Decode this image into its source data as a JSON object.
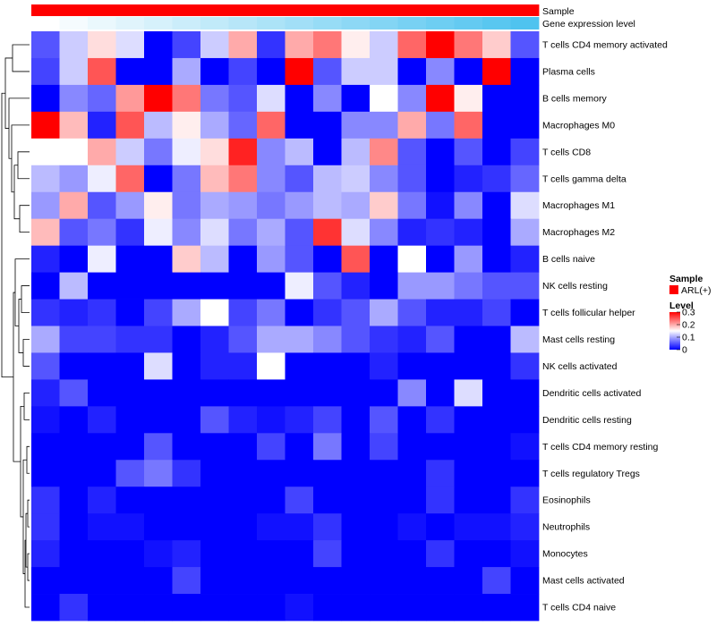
{
  "chart_data": {
    "type": "heatmap",
    "column_annotations": [
      {
        "name": "Sample",
        "kind": "categorical",
        "color": "#ff0000"
      },
      {
        "name": "Gene expression level",
        "kind": "continuous",
        "low_color": "#ffffff",
        "high_color": "#4fc3ef"
      }
    ],
    "rows": [
      "T cells CD4 memory activated",
      "Plasma cells",
      "B cells memory",
      "Macrophages M0",
      "T cells CD8",
      "T cells gamma delta",
      "Macrophages M1",
      "Macrophages M2",
      "B cells naive",
      "NK cells resting",
      "T cells follicular helper",
      "Mast cells resting",
      "NK cells activated",
      "Dendritic cells activated",
      "Dendritic cells resting",
      "T cells CD4 memory resting",
      "T cells regulatory  Tregs",
      "Eosinophils",
      "Neutrophils",
      "Monocytes",
      "Mast cells activated",
      "T cells CD4 naive"
    ],
    "n_columns": 18,
    "values": [
      [
        0.05,
        0.12,
        0.17,
        0.13,
        0.0,
        0.04,
        0.12,
        0.2,
        0.03,
        0.2,
        0.23,
        0.16,
        0.12,
        0.24,
        0.3,
        0.23,
        0.18,
        0.05
      ],
      [
        0.04,
        0.12,
        0.25,
        0.0,
        0.0,
        0.1,
        0.0,
        0.04,
        0.0,
        0.3,
        0.05,
        0.12,
        0.12,
        0.0,
        0.08,
        0.0,
        0.3,
        0.0
      ],
      [
        0.0,
        0.08,
        0.06,
        0.21,
        0.3,
        0.23,
        0.07,
        0.05,
        0.13,
        0.0,
        0.08,
        0.0,
        0.15,
        0.08,
        0.3,
        0.16,
        0.0,
        0.0
      ],
      [
        0.3,
        0.19,
        0.02,
        0.25,
        0.11,
        0.16,
        0.1,
        0.06,
        0.24,
        0.0,
        0.0,
        0.08,
        0.08,
        0.2,
        0.07,
        0.24,
        0.0,
        0.0
      ],
      [
        0.15,
        0.15,
        0.2,
        0.12,
        0.07,
        0.14,
        0.17,
        0.28,
        0.08,
        0.11,
        0.0,
        0.11,
        0.22,
        0.05,
        0.0,
        0.05,
        0.0,
        0.04
      ],
      [
        0.11,
        0.09,
        0.14,
        0.24,
        0.0,
        0.07,
        0.19,
        0.23,
        0.08,
        0.05,
        0.11,
        0.12,
        0.08,
        0.05,
        0.0,
        0.02,
        0.03,
        0.06
      ],
      [
        0.09,
        0.2,
        0.05,
        0.09,
        0.16,
        0.07,
        0.1,
        0.09,
        0.07,
        0.09,
        0.11,
        0.1,
        0.18,
        0.07,
        0.01,
        0.08,
        0.0,
        0.13
      ],
      [
        0.19,
        0.05,
        0.07,
        0.03,
        0.14,
        0.08,
        0.13,
        0.07,
        0.1,
        0.05,
        0.27,
        0.13,
        0.08,
        0.02,
        0.03,
        0.02,
        0.0,
        0.1
      ],
      [
        0.02,
        0.0,
        0.14,
        0.0,
        0.0,
        0.18,
        0.11,
        0.0,
        0.09,
        0.05,
        0.0,
        0.25,
        0.0,
        0.15,
        0.0,
        0.09,
        0.0,
        0.02
      ],
      [
        0.0,
        0.11,
        0.0,
        0.0,
        0.0,
        0.0,
        0.0,
        0.0,
        0.0,
        0.14,
        0.05,
        0.02,
        0.0,
        0.09,
        0.09,
        0.07,
        0.05,
        0.05
      ],
      [
        0.03,
        0.02,
        0.03,
        0.0,
        0.04,
        0.1,
        0.15,
        0.04,
        0.07,
        0.0,
        0.03,
        0.05,
        0.1,
        0.05,
        0.02,
        0.02,
        0.04,
        0.0
      ],
      [
        0.1,
        0.04,
        0.04,
        0.03,
        0.03,
        0.0,
        0.02,
        0.05,
        0.1,
        0.1,
        0.08,
        0.05,
        0.03,
        0.02,
        0.05,
        0.0,
        0.0,
        0.11
      ],
      [
        0.05,
        0.0,
        0.0,
        0.0,
        0.13,
        0.0,
        0.02,
        0.02,
        0.15,
        0.0,
        0.0,
        0.0,
        0.02,
        0.0,
        0.0,
        0.0,
        0.0,
        0.03
      ],
      [
        0.02,
        0.05,
        0.0,
        0.0,
        0.0,
        0.0,
        0.0,
        0.0,
        0.0,
        0.0,
        0.0,
        0.0,
        0.0,
        0.08,
        0.0,
        0.13,
        0.0,
        0.0
      ],
      [
        0.01,
        0.0,
        0.02,
        0.0,
        0.0,
        0.0,
        0.05,
        0.02,
        0.01,
        0.02,
        0.04,
        0.0,
        0.05,
        0.0,
        0.03,
        0.0,
        0.0,
        0.0
      ],
      [
        0.0,
        0.0,
        0.0,
        0.0,
        0.05,
        0.0,
        0.0,
        0.0,
        0.04,
        0.0,
        0.07,
        0.0,
        0.04,
        0.0,
        0.0,
        0.0,
        0.0,
        0.01
      ],
      [
        0.0,
        0.0,
        0.0,
        0.05,
        0.07,
        0.03,
        0.0,
        0.0,
        0.0,
        0.0,
        0.0,
        0.0,
        0.0,
        0.0,
        0.03,
        0.0,
        0.0,
        0.0
      ],
      [
        0.03,
        0.0,
        0.02,
        0.0,
        0.0,
        0.0,
        0.0,
        0.0,
        0.0,
        0.04,
        0.0,
        0.0,
        0.0,
        0.0,
        0.03,
        0.0,
        0.0,
        0.03
      ],
      [
        0.03,
        0.0,
        0.01,
        0.01,
        0.0,
        0.0,
        0.0,
        0.0,
        0.01,
        0.01,
        0.03,
        0.0,
        0.0,
        0.01,
        0.0,
        0.01,
        0.01,
        0.02
      ],
      [
        0.02,
        0.0,
        0.0,
        0.0,
        0.01,
        0.02,
        0.0,
        0.0,
        0.0,
        0.0,
        0.04,
        0.0,
        0.0,
        0.0,
        0.03,
        0.0,
        0.0,
        0.01
      ],
      [
        0.0,
        0.0,
        0.0,
        0.0,
        0.0,
        0.04,
        0.0,
        0.0,
        0.0,
        0.0,
        0.0,
        0.0,
        0.0,
        0.0,
        0.0,
        0.0,
        0.04,
        0.0
      ],
      [
        0.0,
        0.03,
        0.0,
        0.0,
        0.0,
        0.0,
        0.0,
        0.0,
        0.0,
        0.01,
        0.0,
        0.0,
        0.0,
        0.0,
        0.0,
        0.0,
        0.0,
        0.0
      ]
    ],
    "color_scale": {
      "stops": [
        {
          "value": 0,
          "color": "#0000ff"
        },
        {
          "value": 0.15,
          "color": "#ffffff"
        },
        {
          "value": 0.3,
          "color": "#ff0000"
        }
      ]
    },
    "legend": {
      "placement": "right",
      "sample": {
        "title": "Sample",
        "items": [
          {
            "label": "ARL(+)",
            "color": "#ff0000"
          }
        ]
      },
      "level": {
        "title": "Level",
        "range": [
          0,
          0.3
        ],
        "ticks": [
          0.3,
          0.2,
          0.1,
          0
        ],
        "tick_labels": [
          "0.3",
          "0.2",
          "0.1",
          "0"
        ]
      }
    },
    "row_dendrogram": true,
    "grid": false
  }
}
